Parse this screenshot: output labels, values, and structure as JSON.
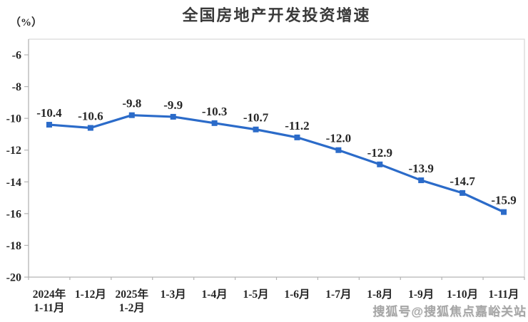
{
  "page": {
    "background": "#ffffff"
  },
  "chart_data": {
    "type": "line",
    "title": "全国房地产开发投资增速",
    "unit": "（%）",
    "categories": [
      [
        "2024年",
        "1-11月"
      ],
      [
        "1-12月"
      ],
      [
        "2025年",
        "1-2月"
      ],
      [
        "1-3月"
      ],
      [
        "1-4月"
      ],
      [
        "1-5月"
      ],
      [
        "1-6月"
      ],
      [
        "1-7月"
      ],
      [
        "1-8月"
      ],
      [
        "1-9月"
      ],
      [
        "1-10月"
      ],
      [
        "1-11月"
      ]
    ],
    "values": [
      -10.4,
      -10.6,
      -9.8,
      -9.9,
      -10.3,
      -10.7,
      -11.2,
      -12.0,
      -12.9,
      -13.9,
      -14.7,
      -15.9
    ],
    "data_labels": [
      "-10.4",
      "-10.6",
      "-9.8",
      "-9.9",
      "-10.3",
      "-10.7",
      "-11.2",
      "-12.0",
      "-12.9",
      "-13.9",
      "-14.7",
      "-15.9"
    ],
    "y_ticks": [
      -6,
      -8,
      -10,
      -12,
      -14,
      -16,
      -18,
      -20
    ],
    "ylim": [
      -20,
      -6
    ],
    "grid": false,
    "legend": false,
    "line_color": "#2b6bc9",
    "marker": "square",
    "axis_color": "#b3b3b3",
    "border_color": "#d9d9d9",
    "text_color": "#262626"
  },
  "watermark": {
    "text": "搜狐号@搜狐焦点嘉峪关站"
  }
}
